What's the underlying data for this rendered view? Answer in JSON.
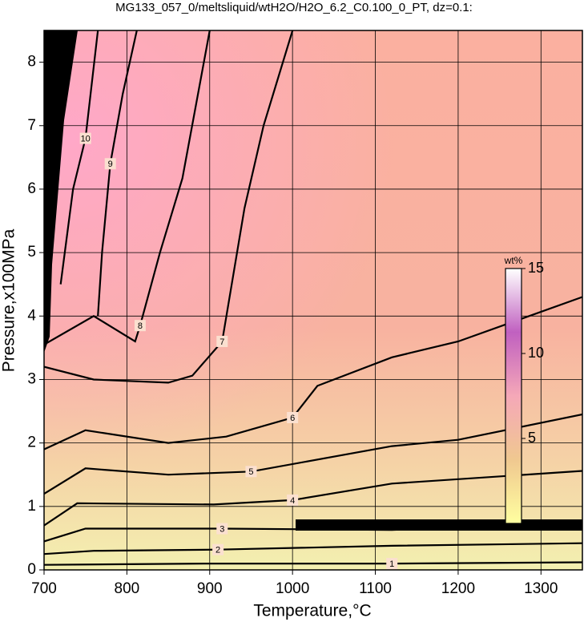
{
  "chart_data": {
    "type": "contour",
    "title": "MG133_057_0/meltsliquid/wtH2O/H2O_6.2_C0.100_0_PT, dz=0.1:",
    "x_label": "Temperature,°C",
    "y_label": "Pressure,x100MPa",
    "xlim": [
      700,
      1350
    ],
    "ylim": [
      0,
      8.5
    ],
    "xticks": [
      700,
      800,
      900,
      1000,
      1100,
      1200,
      1300
    ],
    "yticks": [
      0,
      1,
      2,
      3,
      4,
      5,
      6,
      7,
      8
    ],
    "grid": true,
    "line_color": "#000000",
    "contours": [
      {
        "level": 1,
        "points": [
          [
            700,
            0.08
          ],
          [
            900,
            0.1
          ],
          [
            1120,
            0.1
          ],
          [
            1350,
            0.12
          ]
        ]
      },
      {
        "level": 2,
        "points": [
          [
            700,
            0.25
          ],
          [
            760,
            0.3
          ],
          [
            910,
            0.32
          ],
          [
            1120,
            0.38
          ],
          [
            1350,
            0.42
          ]
        ]
      },
      {
        "level": 3,
        "points": [
          [
            700,
            0.45
          ],
          [
            750,
            0.65
          ],
          [
            915,
            0.65
          ],
          [
            1120,
            0.63
          ],
          [
            1350,
            0.75
          ]
        ]
      },
      {
        "level": 4,
        "points": [
          [
            700,
            0.7
          ],
          [
            740,
            1.05
          ],
          [
            905,
            1.03
          ],
          [
            1000,
            1.1
          ],
          [
            1120,
            1.36
          ],
          [
            1350,
            1.56
          ]
        ]
      },
      {
        "level": 5,
        "points": [
          [
            700,
            1.2
          ],
          [
            750,
            1.6
          ],
          [
            850,
            1.5
          ],
          [
            950,
            1.55
          ],
          [
            1120,
            1.95
          ],
          [
            1200,
            2.05
          ],
          [
            1350,
            2.45
          ]
        ]
      },
      {
        "level": 6,
        "points": [
          [
            700,
            1.9
          ],
          [
            750,
            2.2
          ],
          [
            850,
            2.0
          ],
          [
            920,
            2.1
          ],
          [
            1000,
            2.4
          ],
          [
            1030,
            2.9
          ],
          [
            1120,
            3.35
          ],
          [
            1200,
            3.6
          ],
          [
            1350,
            4.3
          ]
        ]
      },
      {
        "level": 7,
        "points": [
          [
            700,
            3.2
          ],
          [
            760,
            3.0
          ],
          [
            850,
            2.95
          ],
          [
            879,
            3.06
          ],
          [
            915,
            3.6
          ],
          [
            942,
            5.7
          ],
          [
            965,
            7.0
          ],
          [
            1000,
            8.5
          ]
        ]
      },
      {
        "level": 8,
        "points": [
          [
            700,
            3.55
          ],
          [
            760,
            4.0
          ],
          [
            810,
            3.6
          ],
          [
            816,
            3.85
          ],
          [
            840,
            5.0
          ],
          [
            867,
            6.17
          ],
          [
            900,
            8.5
          ]
        ]
      },
      {
        "level": 9,
        "points": [
          [
            765,
            4.0
          ],
          [
            770,
            5.0
          ],
          [
            780,
            6.4
          ],
          [
            795,
            7.5
          ],
          [
            812,
            8.5
          ]
        ]
      },
      {
        "level": 10,
        "points": [
          [
            720,
            4.5
          ],
          [
            735,
            6.0
          ],
          [
            750,
            6.8
          ],
          [
            765,
            8.5
          ]
        ]
      }
    ],
    "colorbar": {
      "title": "wt%",
      "lim": [
        0,
        15
      ],
      "ticks": [
        5,
        10,
        15
      ],
      "colors": [
        "#ffffa0",
        "#f0c890",
        "#f5a8b8",
        "#c060c0",
        "#ffffff"
      ]
    }
  }
}
